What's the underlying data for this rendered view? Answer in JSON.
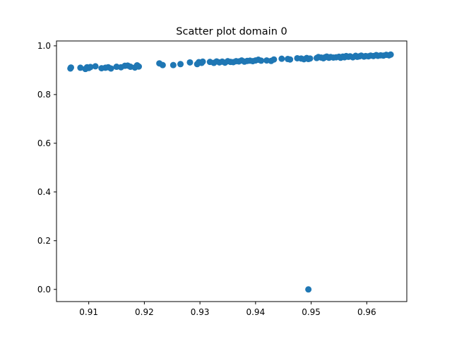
{
  "chart_data": {
    "type": "scatter",
    "title": "Scatter plot domain 0",
    "xlabel": "",
    "ylabel": "",
    "xlim": [
      0.9042,
      0.9672
    ],
    "ylim": [
      -0.05,
      1.02
    ],
    "xticks": [
      0.91,
      0.92,
      0.93,
      0.94,
      0.95,
      0.96
    ],
    "xtick_labels": [
      "0.91",
      "0.92",
      "0.93",
      "0.94",
      "0.95",
      "0.96"
    ],
    "yticks": [
      0.0,
      0.2,
      0.4,
      0.6,
      0.8,
      1.0
    ],
    "ytick_labels": [
      "0.0",
      "0.2",
      "0.4",
      "0.6",
      "0.8",
      "1.0"
    ],
    "grid": false,
    "legend": "none",
    "marker_color": "#1f77b4",
    "points": [
      [
        0.9067,
        0.907
      ],
      [
        0.9068,
        0.911
      ],
      [
        0.9085,
        0.91
      ],
      [
        0.9094,
        0.905
      ],
      [
        0.9097,
        0.912
      ],
      [
        0.91,
        0.909
      ],
      [
        0.9103,
        0.913
      ],
      [
        0.9112,
        0.916
      ],
      [
        0.9123,
        0.908
      ],
      [
        0.913,
        0.91
      ],
      [
        0.9135,
        0.912
      ],
      [
        0.914,
        0.907
      ],
      [
        0.915,
        0.914
      ],
      [
        0.9158,
        0.912
      ],
      [
        0.9165,
        0.918
      ],
      [
        0.917,
        0.919
      ],
      [
        0.9175,
        0.914
      ],
      [
        0.9183,
        0.911
      ],
      [
        0.9187,
        0.92
      ],
      [
        0.919,
        0.915
      ],
      [
        0.9227,
        0.928
      ],
      [
        0.9233,
        0.921
      ],
      [
        0.9252,
        0.921
      ],
      [
        0.9265,
        0.925
      ],
      [
        0.9282,
        0.932
      ],
      [
        0.9295,
        0.925
      ],
      [
        0.9298,
        0.933
      ],
      [
        0.9303,
        0.93
      ],
      [
        0.9305,
        0.935
      ],
      [
        0.9318,
        0.934
      ],
      [
        0.9325,
        0.93
      ],
      [
        0.933,
        0.936
      ],
      [
        0.9335,
        0.932
      ],
      [
        0.934,
        0.935
      ],
      [
        0.9345,
        0.931
      ],
      [
        0.935,
        0.937
      ],
      [
        0.9355,
        0.934
      ],
      [
        0.936,
        0.933
      ],
      [
        0.9365,
        0.937
      ],
      [
        0.937,
        0.936
      ],
      [
        0.9375,
        0.94
      ],
      [
        0.938,
        0.935
      ],
      [
        0.9385,
        0.938
      ],
      [
        0.939,
        0.939
      ],
      [
        0.9395,
        0.937
      ],
      [
        0.94,
        0.94
      ],
      [
        0.9405,
        0.943
      ],
      [
        0.941,
        0.939
      ],
      [
        0.942,
        0.94
      ],
      [
        0.9428,
        0.938
      ],
      [
        0.9433,
        0.944
      ],
      [
        0.9447,
        0.947
      ],
      [
        0.9458,
        0.946
      ],
      [
        0.9462,
        0.944
      ],
      [
        0.9475,
        0.949
      ],
      [
        0.9482,
        0.948
      ],
      [
        0.9487,
        0.945
      ],
      [
        0.9492,
        0.95
      ],
      [
        0.9495,
        0.946
      ],
      [
        0.9498,
        0.948
      ],
      [
        0.951,
        0.95
      ],
      [
        0.9513,
        0.954
      ],
      [
        0.9518,
        0.952
      ],
      [
        0.9522,
        0.949
      ],
      [
        0.9525,
        0.953
      ],
      [
        0.9528,
        0.956
      ],
      [
        0.9532,
        0.951
      ],
      [
        0.9535,
        0.954
      ],
      [
        0.954,
        0.952
      ],
      [
        0.9545,
        0.953
      ],
      [
        0.955,
        0.955
      ],
      [
        0.9553,
        0.951
      ],
      [
        0.9557,
        0.956
      ],
      [
        0.956,
        0.953
      ],
      [
        0.9563,
        0.958
      ],
      [
        0.9567,
        0.955
      ],
      [
        0.957,
        0.957
      ],
      [
        0.9575,
        0.953
      ],
      [
        0.958,
        0.959
      ],
      [
        0.9583,
        0.955
      ],
      [
        0.9587,
        0.957
      ],
      [
        0.959,
        0.96
      ],
      [
        0.9595,
        0.956
      ],
      [
        0.9598,
        0.958
      ],
      [
        0.9603,
        0.957
      ],
      [
        0.9607,
        0.96
      ],
      [
        0.9612,
        0.958
      ],
      [
        0.9617,
        0.962
      ],
      [
        0.962,
        0.959
      ],
      [
        0.9625,
        0.961
      ],
      [
        0.963,
        0.96
      ],
      [
        0.9635,
        0.963
      ],
      [
        0.964,
        0.961
      ],
      [
        0.9643,
        0.964
      ],
      [
        0.9495,
        0.0
      ]
    ]
  }
}
